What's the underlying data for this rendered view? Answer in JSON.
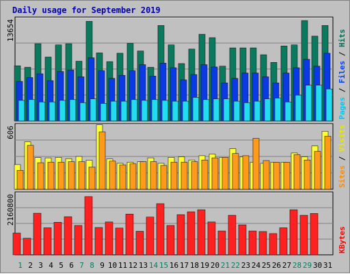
{
  "chart_data": {
    "type": "bar",
    "title": "Daily usage for September 2019",
    "categories": [
      "1",
      "2",
      "3",
      "4",
      "5",
      "6",
      "7",
      "8",
      "9",
      "10",
      "11",
      "12",
      "13",
      "14",
      "15",
      "16",
      "17",
      "18",
      "19",
      "20",
      "21",
      "22",
      "23",
      "24",
      "25",
      "26",
      "27",
      "28",
      "29",
      "30",
      "31"
    ],
    "weekend_days": [
      "1",
      "7",
      "8",
      "14",
      "15",
      "21",
      "22",
      "28",
      "29"
    ],
    "panels": [
      {
        "name": "pages-files-hits",
        "ymax_label": "13654",
        "ylim": [
          0,
          13654
        ],
        "right_labels": [
          {
            "text": "Pages",
            "color": "#00c8f0"
          },
          {
            "text": " / ",
            "color": "#000000"
          },
          {
            "text": "Files",
            "color": "#0040ff"
          },
          {
            "text": " / ",
            "color": "#000000"
          },
          {
            "text": "Hits",
            "color": "#006c54"
          }
        ],
        "series": [
          {
            "name": "Hits",
            "color": "#0a7a5e",
            "values": [
              7250,
              7050,
              10150,
              8400,
              10000,
              10150,
              7850,
              13100,
              8950,
              7800,
              8900,
              10200,
              9200,
              7050,
              12550,
              10000,
              7550,
              9450,
              11400,
              10950,
              7200,
              9600,
              9600,
              9600,
              8700,
              7700,
              9850,
              10000,
              13200,
              11150,
              12550
            ]
          },
          {
            "name": "Files",
            "color": "#0a3ae6",
            "values": [
              5200,
              5700,
              6200,
              5300,
              6500,
              6700,
              5800,
              8300,
              6600,
              5600,
              6000,
              6600,
              7400,
              5900,
              7600,
              7000,
              5400,
              6100,
              7400,
              7100,
              5000,
              5600,
              6300,
              6300,
              5800,
              5000,
              6300,
              7000,
              8100,
              7200,
              8900
            ]
          },
          {
            "name": "Pages",
            "color": "#22dcf0",
            "values": [
              2700,
              2800,
              2500,
              2500,
              2700,
              2800,
              2400,
              2900,
              2300,
              2600,
              2600,
              2800,
              2700,
              2800,
              2700,
              2600,
              2600,
              3100,
              2800,
              2900,
              2900,
              2600,
              2400,
              2600,
              2900,
              3000,
              2500,
              3400,
              4700,
              4700,
              4200
            ]
          }
        ]
      },
      {
        "name": "sites-visits",
        "ymax_label": "606",
        "ylim": [
          0,
          606
        ],
        "right_labels": [
          {
            "text": "Sites",
            "color": "#ff8c00"
          },
          {
            "text": " / ",
            "color": "#000000"
          },
          {
            "text": "Visits",
            "color": "#e8e800"
          }
        ],
        "series": [
          {
            "name": "Visits",
            "color": "#ffff33",
            "values": [
              228,
              439,
              292,
              290,
              295,
              283,
              303,
              268,
              595,
              280,
              240,
              250,
              255,
              290,
              240,
              295,
              300,
              270,
              310,
              325,
              295,
              375,
              300,
              250,
              240,
              250,
              250,
              335,
              300,
              400,
              535
            ]
          },
          {
            "name": "Sites",
            "color": "#ff9a1a",
            "values": [
              175,
              405,
              245,
              250,
              250,
              255,
              255,
              205,
              530,
              260,
              225,
              235,
              255,
              255,
              220,
              250,
              250,
              255,
              270,
              290,
              295,
              330,
              310,
              470,
              265,
              250,
              250,
              320,
              270,
              350,
              490
            ]
          }
        ]
      },
      {
        "name": "kbytes",
        "ymax_label": "2160800",
        "ylim": [
          0,
          2160800
        ],
        "right_labels": [
          {
            "text": "KBytes",
            "color": "#ff0000"
          }
        ],
        "series": [
          {
            "name": "KBytes",
            "color": "#ff2020",
            "values": [
              750000,
              570000,
              1430000,
              930000,
              1120000,
              1310000,
              1010000,
              2000000,
              940000,
              1130000,
              920000,
              1400000,
              810000,
              1300000,
              1760000,
              1010000,
              1380000,
              1480000,
              1550000,
              1130000,
              820000,
              1360000,
              1030000,
              820000,
              800000,
              730000,
              930000,
              1550000,
              1360000,
              1420000,
              0
            ]
          }
        ]
      }
    ]
  }
}
